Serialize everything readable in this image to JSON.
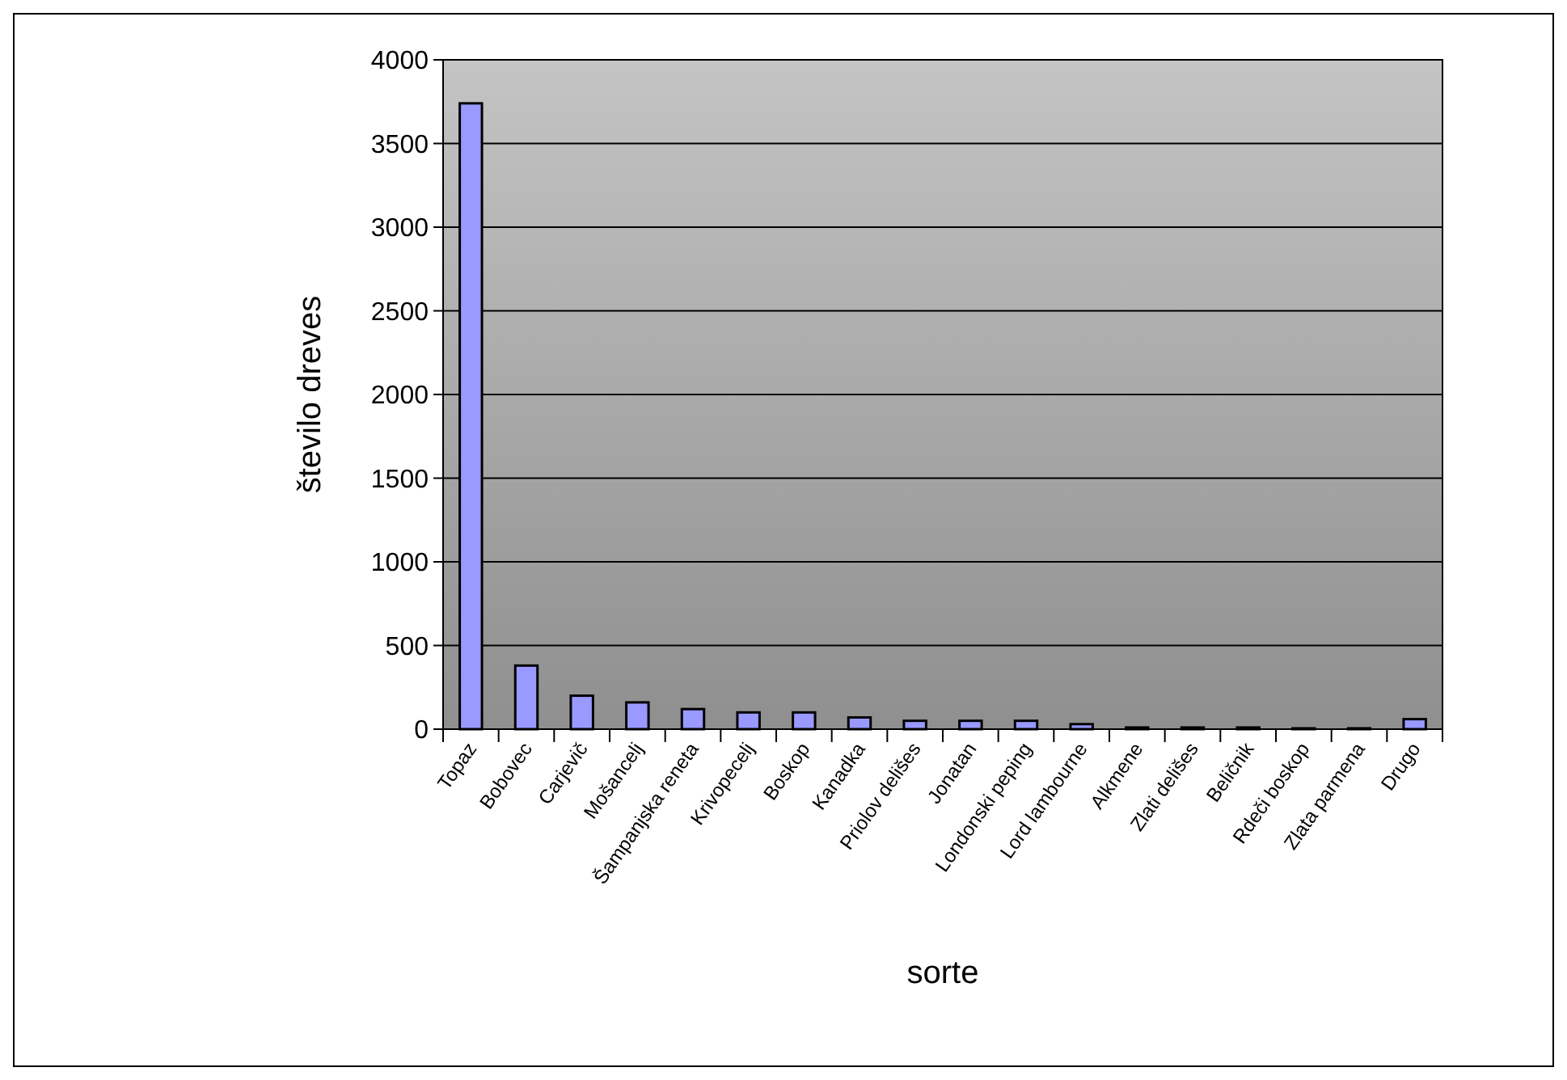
{
  "chart_data": {
    "type": "bar",
    "xlabel": "sorte",
    "ylabel": "število dreves",
    "categories": [
      "Topaz",
      "Bobovec",
      "Carjevič",
      "Mošancelj",
      "Šampanjska reneta",
      "Krivopecelj",
      "Boskop",
      "Kanadka",
      "Priolov delišes",
      "Jonatan",
      "Londonski peping",
      "Lord lambourne",
      "Alkmene",
      "Zlati delišes",
      "Beličnik",
      "Rdeči boskop",
      "Zlata parmena",
      "Drugo"
    ],
    "values": [
      3740,
      380,
      200,
      160,
      120,
      100,
      100,
      70,
      50,
      50,
      50,
      30,
      10,
      10,
      10,
      5,
      5,
      60
    ],
    "color": "#9999ff",
    "ylim": [
      0,
      4000
    ],
    "yticks": [
      0,
      500,
      1000,
      1500,
      2000,
      2500,
      3000,
      3500,
      4000
    ],
    "grid": "y"
  }
}
